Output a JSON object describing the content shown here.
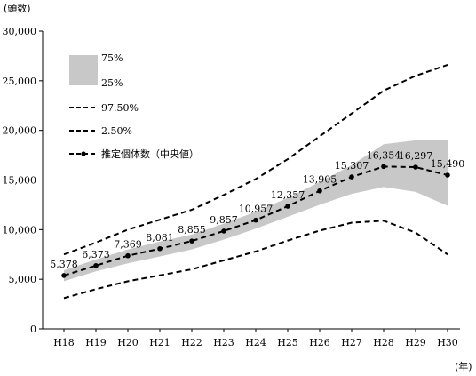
{
  "chart_data": {
    "type": "line",
    "x_unit": "(年)",
    "y_unit": "(頭数)",
    "categories": [
      "H18",
      "H19",
      "H20",
      "H21",
      "H22",
      "H23",
      "H24",
      "H25",
      "H26",
      "H27",
      "H28",
      "H29",
      "H30"
    ],
    "ylim": [
      0,
      30000
    ],
    "y_ticks": [
      "0",
      "5,000",
      "10,000",
      "15,000",
      "20,000",
      "25,000",
      "30,000"
    ],
    "band": {
      "upper_name": "75%",
      "lower_name": "25%",
      "color": "#c8c8c8",
      "upper": [
        5900,
        7000,
        8000,
        8800,
        9500,
        10600,
        11800,
        13200,
        14800,
        16500,
        18600,
        19000,
        19000
      ],
      "lower": [
        4800,
        5800,
        6600,
        7300,
        8000,
        9000,
        10100,
        11300,
        12500,
        13600,
        14300,
        13800,
        12400
      ]
    },
    "series": [
      {
        "name": "97.50%",
        "style": "dashed",
        "values": [
          7500,
          8700,
          10000,
          11000,
          12000,
          13500,
          15100,
          17100,
          19400,
          21700,
          24000,
          25500,
          26600
        ]
      },
      {
        "name": "2.50%",
        "style": "dashed",
        "values": [
          3100,
          4000,
          4800,
          5400,
          6000,
          6900,
          7800,
          8900,
          9900,
          10700,
          10900,
          9700,
          7500
        ]
      },
      {
        "name": "推定個体数（中央値）",
        "style": "dashed-markers",
        "values": [
          5378,
          6373,
          7369,
          8081,
          8855,
          9857,
          10957,
          12357,
          13905,
          15307,
          16354,
          16297,
          15490
        ],
        "labels": [
          "5,378",
          "6,373",
          "7,369",
          "8,081",
          "8,855",
          "9,857",
          "10,957",
          "12,357",
          "13,905",
          "15,307",
          "16,354",
          "16,297",
          "15,490"
        ]
      }
    ],
    "legend_position": "top-left",
    "grid": false
  }
}
